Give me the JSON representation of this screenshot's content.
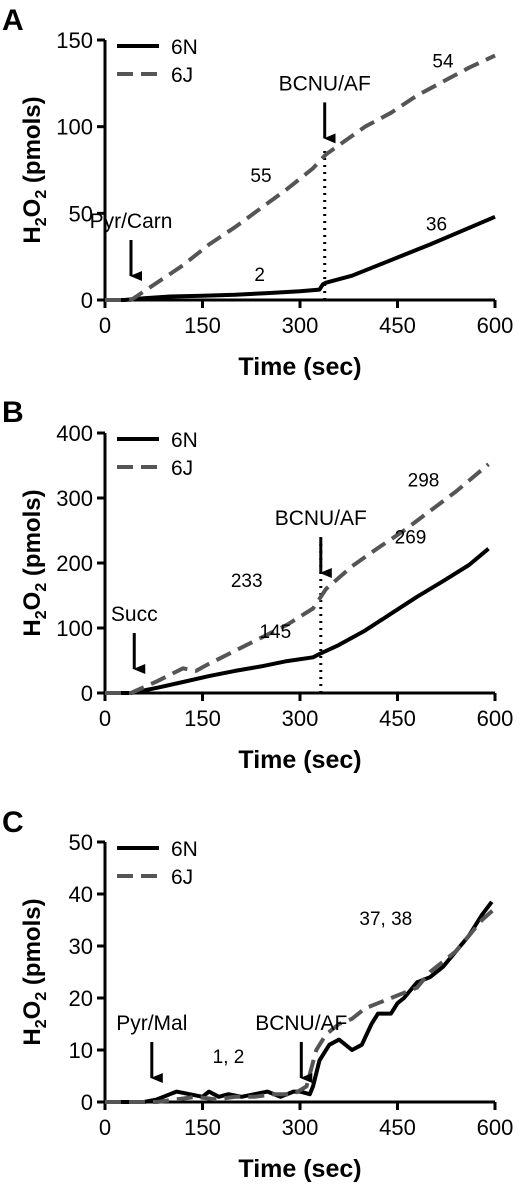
{
  "chart_data": [
    {
      "panel": "A",
      "type": "line",
      "xlabel": "Time (sec)",
      "ylabel_parts": [
        "H",
        "2",
        "O",
        "2",
        " (pmols)"
      ],
      "xlim": [
        0,
        600
      ],
      "ylim": [
        0,
        150
      ],
      "xticks": [
        0,
        150,
        300,
        450,
        600
      ],
      "yticks": [
        0,
        50,
        100,
        150
      ],
      "legend_position": "top-left",
      "series": [
        {
          "name": "6N",
          "style": "solid",
          "color": "#000000",
          "x": [
            0,
            30,
            60,
            100,
            150,
            200,
            250,
            300,
            330,
            335,
            340,
            380,
            420,
            460,
            500,
            550,
            600
          ],
          "y": [
            0,
            0,
            1,
            2,
            2.5,
            3,
            4,
            5,
            6,
            9,
            10,
            14,
            20,
            26,
            32,
            40,
            48
          ]
        },
        {
          "name": "6J",
          "style": "dashed",
          "color": "#555555",
          "x": [
            0,
            40,
            80,
            120,
            160,
            200,
            240,
            280,
            320,
            340,
            370,
            400,
            440,
            480,
            520,
            560,
            600
          ],
          "y": [
            0,
            0,
            10,
            20,
            32,
            42,
            53,
            64,
            76,
            84,
            92,
            100,
            108,
            118,
            126,
            134,
            141
          ]
        }
      ],
      "annotations": [
        {
          "text": "Pyr/Carn",
          "x": 40,
          "type": "arrow"
        },
        {
          "text": "BCNU/AF",
          "x": 338,
          "type": "arrow-dotted"
        },
        {
          "text": "55",
          "x": 240,
          "y": 68
        },
        {
          "text": "54",
          "x": 520,
          "y": 134
        },
        {
          "text": "2",
          "x": 238,
          "y": 11
        },
        {
          "text": "36",
          "x": 510,
          "y": 40
        }
      ]
    },
    {
      "panel": "B",
      "type": "line",
      "xlabel": "Time (sec)",
      "ylabel_parts": [
        "H",
        "2",
        "O",
        "2",
        " (pmols)"
      ],
      "xlim": [
        0,
        600
      ],
      "ylim": [
        0,
        400
      ],
      "xticks": [
        0,
        150,
        300,
        450,
        600
      ],
      "yticks": [
        0,
        100,
        200,
        300,
        400
      ],
      "legend_position": "top-left",
      "series": [
        {
          "name": "6N",
          "style": "solid",
          "color": "#000000",
          "x": [
            0,
            40,
            80,
            120,
            160,
            200,
            240,
            280,
            320,
            330,
            360,
            400,
            440,
            480,
            520,
            560,
            590
          ],
          "y": [
            0,
            0,
            8,
            17,
            26,
            34,
            41,
            49,
            55,
            60,
            74,
            96,
            122,
            148,
            172,
            197,
            222
          ]
        },
        {
          "name": "6J",
          "style": "dashed",
          "color": "#555555",
          "x": [
            0,
            40,
            80,
            120,
            140,
            160,
            200,
            240,
            280,
            320,
            340,
            380,
            420,
            460,
            500,
            540,
            590
          ],
          "y": [
            0,
            0,
            18,
            38,
            34,
            45,
            65,
            85,
            105,
            130,
            160,
            195,
            223,
            250,
            280,
            310,
            352
          ]
        }
      ],
      "annotations": [
        {
          "text": "Succ",
          "x": 45,
          "type": "arrow"
        },
        {
          "text": "BCNU/AF",
          "x": 332,
          "type": "arrow-dotted"
        },
        {
          "text": "233",
          "x": 218,
          "y": 163
        },
        {
          "text": "298",
          "x": 490,
          "y": 318
        },
        {
          "text": "145",
          "x": 262,
          "y": 85
        },
        {
          "text": "269",
          "x": 470,
          "y": 230
        }
      ]
    },
    {
      "panel": "C",
      "type": "line",
      "xlabel": "Time (sec)",
      "ylabel_parts": [
        "H",
        "2",
        "O",
        "2",
        " (pmols)"
      ],
      "xlim": [
        0,
        600
      ],
      "ylim": [
        0,
        50
      ],
      "xticks": [
        0,
        150,
        300,
        450,
        600
      ],
      "yticks": [
        0,
        10,
        20,
        30,
        40,
        50
      ],
      "legend_position": "top-left",
      "series": [
        {
          "name": "6N",
          "style": "solid",
          "color": "#000000",
          "x": [
            0,
            40,
            60,
            80,
            100,
            110,
            130,
            150,
            160,
            175,
            190,
            210,
            230,
            250,
            270,
            290,
            300,
            315,
            320,
            330,
            345,
            360,
            380,
            395,
            410,
            420,
            440,
            450,
            460,
            480,
            500,
            520,
            540,
            560,
            580,
            595
          ],
          "y": [
            0,
            0,
            0,
            0.5,
            1.5,
            2,
            1.5,
            1,
            2,
            1,
            1.5,
            1,
            1.5,
            2,
            1,
            2,
            2,
            1.5,
            3,
            8,
            11,
            12,
            10,
            11,
            15,
            17,
            17,
            19,
            20,
            23,
            24,
            26,
            29,
            32,
            36,
            38.5
          ]
        },
        {
          "name": "6J",
          "style": "dashed",
          "color": "#555555",
          "x": [
            0,
            50,
            80,
            110,
            140,
            170,
            200,
            230,
            260,
            290,
            310,
            325,
            340,
            360,
            380,
            400,
            420,
            440,
            460,
            480,
            500,
            520,
            540,
            560,
            580,
            598
          ],
          "y": [
            0,
            0,
            0,
            0.5,
            1,
            0.5,
            1,
            1,
            1.5,
            1.5,
            3,
            10,
            13,
            15,
            16,
            18,
            19,
            20,
            21,
            22,
            25,
            27,
            29,
            32,
            35,
            37
          ]
        }
      ],
      "annotations": [
        {
          "text": "Pyr/Mal",
          "x": 72,
          "type": "arrow"
        },
        {
          "text": "BCNU/AF",
          "x": 302,
          "type": "arrow"
        },
        {
          "text": "1, 2",
          "x": 190,
          "y": 7.5
        },
        {
          "text": "37, 38",
          "x": 432,
          "y": 34
        }
      ]
    }
  ]
}
